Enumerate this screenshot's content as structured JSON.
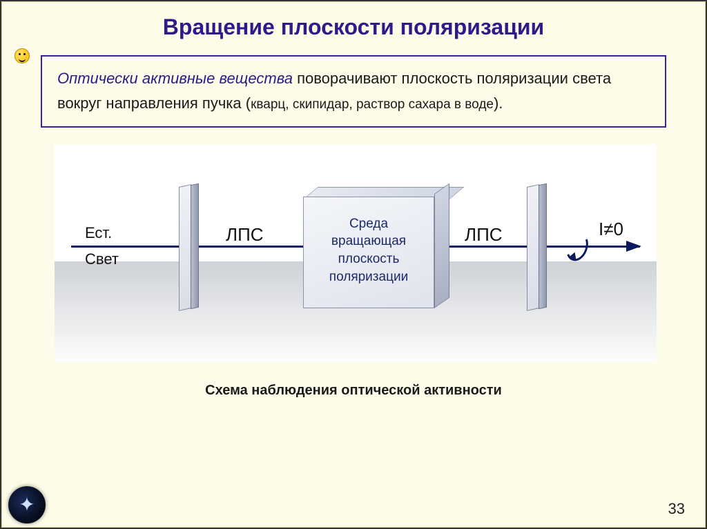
{
  "title": "Вращение плоскости поляризации",
  "box": {
    "highlight": "Оптически активные вещества",
    "rest": " поворачивают плоскость поляризации света вокруг направления пучка (",
    "small": "кварц, скипидар, раствор сахара в воде",
    "end": ")."
  },
  "diagram": {
    "est": "Ест.",
    "svet": "Свет",
    "lps": "ЛПС",
    "cube_line1": "Среда",
    "cube_line2": "вращающая",
    "cube_line3": "плоскость",
    "cube_line4": "поляризации",
    "izero": "I≠0",
    "colors": {
      "axis": "#0e1a60",
      "panel": "#d8dde6",
      "cube": "#dfe3ec",
      "floor": "#cfd2d6",
      "bg": "#ffffff"
    }
  },
  "caption": "Схема наблюдения оптической активности",
  "page_number": "33",
  "slide_bg": "#fcfce8",
  "title_color": "#2f1a8a",
  "box_border": "#3b1fa0"
}
